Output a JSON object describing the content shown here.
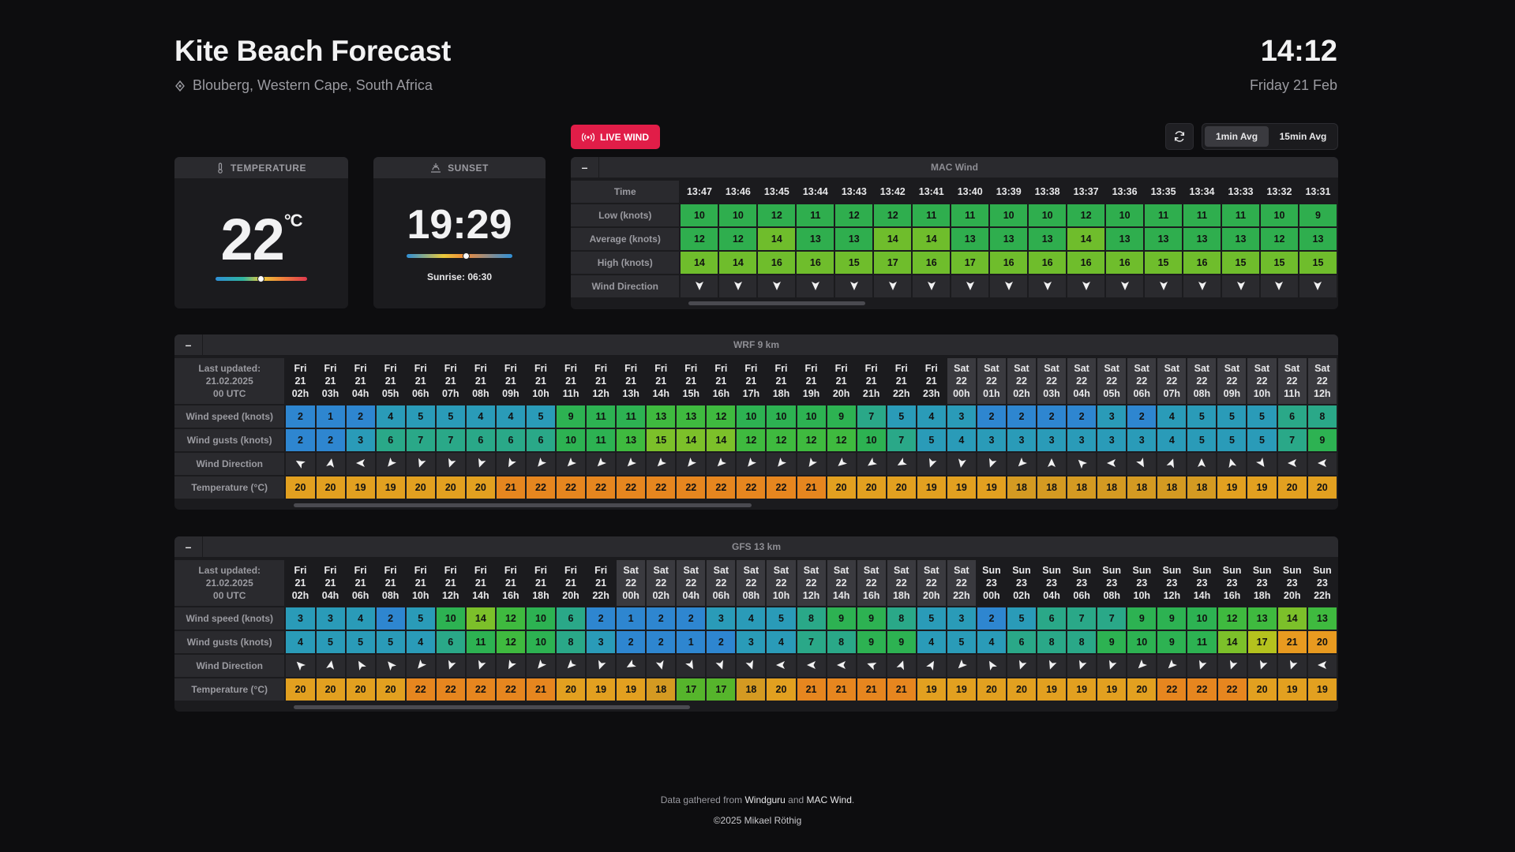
{
  "header": {
    "title": "Kite Beach Forecast",
    "location": "Blouberg, Western Cape, South Africa",
    "time": "14:12",
    "date": "Friday 21 Feb"
  },
  "temperature_card": {
    "label": "TEMPERATURE",
    "value": "22",
    "unit": "°C",
    "gauge_fraction": 0.5
  },
  "sunset_card": {
    "label": "SUNSET",
    "value": "19:29",
    "sunrise": "Sunrise: 06:30",
    "gauge_fraction": 0.57
  },
  "live_wind": {
    "label": "LIVE WIND"
  },
  "averaging": {
    "options": [
      "1min Avg",
      "15min Avg"
    ],
    "selected": "1min Avg"
  },
  "mac_wind": {
    "title": "MAC Wind",
    "row_labels": [
      "Time",
      "Low (knots)",
      "Average (knots)",
      "High (knots)",
      "Wind Direction"
    ],
    "times": [
      "13:47",
      "13:46",
      "13:45",
      "13:44",
      "13:43",
      "13:42",
      "13:41",
      "13:40",
      "13:39",
      "13:38",
      "13:37",
      "13:36",
      "13:35",
      "13:34",
      "13:33",
      "13:32",
      "13:31"
    ],
    "low": [
      10,
      10,
      12,
      11,
      12,
      12,
      11,
      11,
      10,
      10,
      12,
      10,
      11,
      11,
      11,
      10,
      9
    ],
    "average": [
      12,
      12,
      14,
      13,
      13,
      14,
      14,
      13,
      13,
      13,
      14,
      13,
      13,
      13,
      13,
      12,
      13
    ],
    "high": [
      14,
      14,
      16,
      16,
      15,
      17,
      16,
      17,
      16,
      16,
      16,
      16,
      15,
      16,
      15,
      15,
      15
    ],
    "direction": [
      180,
      180,
      180,
      180,
      180,
      180,
      180,
      180,
      180,
      180,
      180,
      180,
      180,
      180,
      180,
      180,
      180
    ]
  },
  "wrf": {
    "title": "WRF 9 km",
    "last_updated": [
      "Last updated:",
      "21.02.2025",
      "00 UTC"
    ],
    "row_labels": [
      "Wind speed (knots)",
      "Wind gusts (knots)",
      "Wind Direction",
      "Temperature (°C)"
    ],
    "columns": [
      [
        "Fri",
        "21",
        "02h"
      ],
      [
        "Fri",
        "21",
        "03h"
      ],
      [
        "Fri",
        "21",
        "04h"
      ],
      [
        "Fri",
        "21",
        "05h"
      ],
      [
        "Fri",
        "21",
        "06h"
      ],
      [
        "Fri",
        "21",
        "07h"
      ],
      [
        "Fri",
        "21",
        "08h"
      ],
      [
        "Fri",
        "21",
        "09h"
      ],
      [
        "Fri",
        "21",
        "10h"
      ],
      [
        "Fri",
        "21",
        "11h"
      ],
      [
        "Fri",
        "21",
        "12h"
      ],
      [
        "Fri",
        "21",
        "13h"
      ],
      [
        "Fri",
        "21",
        "14h"
      ],
      [
        "Fri",
        "21",
        "15h"
      ],
      [
        "Fri",
        "21",
        "16h"
      ],
      [
        "Fri",
        "21",
        "17h"
      ],
      [
        "Fri",
        "21",
        "18h"
      ],
      [
        "Fri",
        "21",
        "19h"
      ],
      [
        "Fri",
        "21",
        "20h"
      ],
      [
        "Fri",
        "21",
        "21h"
      ],
      [
        "Fri",
        "21",
        "22h"
      ],
      [
        "Fri",
        "21",
        "23h"
      ],
      [
        "Sat",
        "22",
        "00h"
      ],
      [
        "Sat",
        "22",
        "01h"
      ],
      [
        "Sat",
        "22",
        "02h"
      ],
      [
        "Sat",
        "22",
        "03h"
      ],
      [
        "Sat",
        "22",
        "04h"
      ],
      [
        "Sat",
        "22",
        "05h"
      ],
      [
        "Sat",
        "22",
        "06h"
      ],
      [
        "Sat",
        "22",
        "07h"
      ],
      [
        "Sat",
        "22",
        "08h"
      ],
      [
        "Sat",
        "22",
        "09h"
      ],
      [
        "Sat",
        "22",
        "10h"
      ],
      [
        "Sat",
        "22",
        "11h"
      ],
      [
        "Sat",
        "22",
        "12h"
      ]
    ],
    "speed": [
      2,
      1,
      2,
      4,
      5,
      5,
      4,
      4,
      5,
      9,
      11,
      11,
      13,
      13,
      12,
      10,
      10,
      10,
      9,
      7,
      5,
      4,
      3,
      2,
      2,
      2,
      2,
      3,
      2,
      4,
      5,
      5,
      5,
      6,
      8
    ],
    "gusts": [
      2,
      2,
      3,
      6,
      7,
      7,
      6,
      6,
      6,
      10,
      11,
      13,
      15,
      14,
      14,
      12,
      12,
      12,
      12,
      10,
      7,
      5,
      4,
      3,
      3,
      3,
      3,
      3,
      3,
      4,
      5,
      5,
      5,
      7,
      9
    ],
    "direction": [
      300,
      10,
      270,
      220,
      200,
      200,
      200,
      210,
      220,
      225,
      225,
      225,
      225,
      220,
      225,
      220,
      220,
      215,
      230,
      235,
      240,
      200,
      190,
      200,
      225,
      0,
      315,
      270,
      150,
      20,
      0,
      345,
      145,
      270,
      270
    ],
    "temperature": [
      20,
      20,
      19,
      19,
      20,
      20,
      20,
      21,
      22,
      22,
      22,
      22,
      22,
      22,
      22,
      22,
      22,
      21,
      20,
      20,
      20,
      19,
      19,
      19,
      18,
      18,
      18,
      18,
      18,
      18,
      18,
      19,
      19,
      20,
      20
    ]
  },
  "gfs": {
    "title": "GFS 13 km",
    "last_updated": [
      "Last updated:",
      "21.02.2025",
      "00 UTC"
    ],
    "row_labels": [
      "Wind speed (knots)",
      "Wind gusts (knots)",
      "Wind Direction",
      "Temperature (°C)"
    ],
    "columns": [
      [
        "Fri",
        "21",
        "02h"
      ],
      [
        "Fri",
        "21",
        "04h"
      ],
      [
        "Fri",
        "21",
        "06h"
      ],
      [
        "Fri",
        "21",
        "08h"
      ],
      [
        "Fri",
        "21",
        "10h"
      ],
      [
        "Fri",
        "21",
        "12h"
      ],
      [
        "Fri",
        "21",
        "14h"
      ],
      [
        "Fri",
        "21",
        "16h"
      ],
      [
        "Fri",
        "21",
        "18h"
      ],
      [
        "Fri",
        "21",
        "20h"
      ],
      [
        "Fri",
        "21",
        "22h"
      ],
      [
        "Sat",
        "22",
        "00h"
      ],
      [
        "Sat",
        "22",
        "02h"
      ],
      [
        "Sat",
        "22",
        "04h"
      ],
      [
        "Sat",
        "22",
        "06h"
      ],
      [
        "Sat",
        "22",
        "08h"
      ],
      [
        "Sat",
        "22",
        "10h"
      ],
      [
        "Sat",
        "22",
        "12h"
      ],
      [
        "Sat",
        "22",
        "14h"
      ],
      [
        "Sat",
        "22",
        "16h"
      ],
      [
        "Sat",
        "22",
        "18h"
      ],
      [
        "Sat",
        "22",
        "20h"
      ],
      [
        "Sat",
        "22",
        "22h"
      ],
      [
        "Sun",
        "23",
        "00h"
      ],
      [
        "Sun",
        "23",
        "02h"
      ],
      [
        "Sun",
        "23",
        "04h"
      ],
      [
        "Sun",
        "23",
        "06h"
      ],
      [
        "Sun",
        "23",
        "08h"
      ],
      [
        "Sun",
        "23",
        "10h"
      ],
      [
        "Sun",
        "23",
        "12h"
      ],
      [
        "Sun",
        "23",
        "14h"
      ],
      [
        "Sun",
        "23",
        "16h"
      ],
      [
        "Sun",
        "23",
        "18h"
      ],
      [
        "Sun",
        "23",
        "20h"
      ],
      [
        "Sun",
        "23",
        "22h"
      ]
    ],
    "speed": [
      3,
      3,
      4,
      2,
      5,
      10,
      14,
      12,
      10,
      6,
      2,
      1,
      2,
      2,
      3,
      4,
      5,
      8,
      9,
      9,
      8,
      5,
      3,
      2,
      5,
      6,
      7,
      7,
      9,
      9,
      10,
      12,
      13,
      14,
      13
    ],
    "gusts": [
      4,
      5,
      5,
      5,
      4,
      6,
      11,
      12,
      10,
      8,
      3,
      2,
      2,
      1,
      2,
      3,
      4,
      7,
      8,
      9,
      9,
      4,
      5,
      4,
      6,
      8,
      8,
      9,
      10,
      9,
      11,
      14,
      17,
      21,
      20
    ],
    "direction": [
      315,
      10,
      330,
      320,
      220,
      200,
      200,
      210,
      220,
      225,
      200,
      240,
      165,
      150,
      160,
      160,
      270,
      270,
      270,
      290,
      20,
      30,
      225,
      330,
      200,
      200,
      200,
      200,
      225,
      225,
      200,
      200,
      200,
      200,
      270
    ],
    "temperature": [
      20,
      20,
      20,
      20,
      22,
      22,
      22,
      22,
      21,
      20,
      19,
      19,
      18,
      17,
      17,
      18,
      20,
      21,
      21,
      21,
      21,
      19,
      19,
      20,
      20,
      19,
      19,
      19,
      20,
      22,
      22,
      22,
      20,
      19,
      19
    ]
  },
  "footer": {
    "prefix": "Data gathered from ",
    "source1": "Windguru",
    "mid": " and ",
    "source2": "MAC Wind",
    "suffix": ".",
    "copyright": "©2025 Mikael Röthig"
  }
}
